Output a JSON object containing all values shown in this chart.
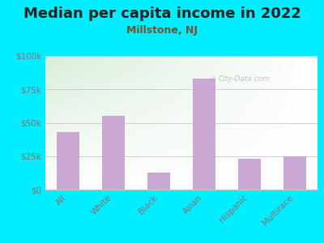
{
  "title": "Median per capita income in 2022",
  "subtitle": "Millstone, NJ",
  "categories": [
    "All",
    "White",
    "Black",
    "Asian",
    "Hispanic",
    "Multirace"
  ],
  "values": [
    43000,
    55000,
    13000,
    83000,
    23000,
    25000
  ],
  "bar_color": "#c9a8d4",
  "background_outer": "#00eeff",
  "background_inner_topleft": "#d8eeda",
  "background_inner_bottomright": "#f8fff8",
  "title_color": "#222222",
  "subtitle_color": "#7a4f2e",
  "tick_label_color": "#8a7070",
  "grid_color": "#c8c8c8",
  "ylim": [
    0,
    100000
  ],
  "yticks": [
    0,
    25000,
    50000,
    75000,
    100000
  ],
  "ytick_labels": [
    "$0",
    "$25k",
    "$50k",
    "$75k",
    "$100k"
  ],
  "watermark": "City-Data.com",
  "title_fontsize": 13,
  "subtitle_fontsize": 9,
  "tick_fontsize": 7.5
}
